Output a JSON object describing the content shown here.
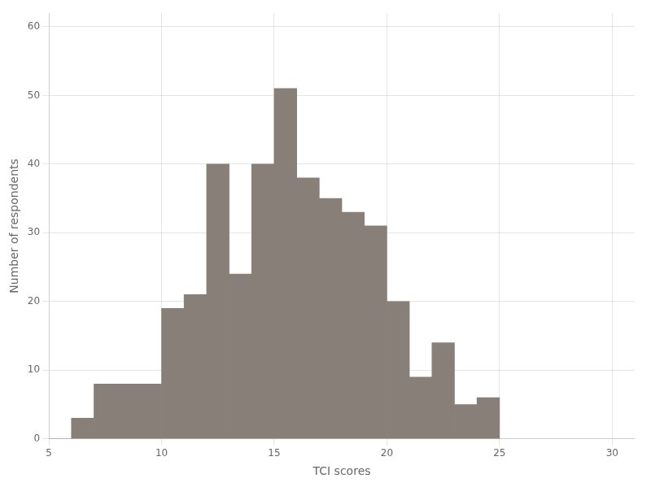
{
  "chart_data": {
    "type": "histogram",
    "bins": [
      5,
      6,
      7,
      8,
      9,
      10,
      11,
      12,
      13,
      14,
      15,
      16,
      17,
      18,
      19,
      20,
      21,
      22,
      23,
      24,
      25
    ],
    "values": [
      0,
      3,
      8,
      8,
      8,
      19,
      21,
      40,
      24,
      40,
      51,
      38,
      35,
      33,
      31,
      20,
      9,
      14,
      5,
      6
    ],
    "color": "#888078",
    "xlabel": "TCI scores",
    "ylabel": "Number of respondents",
    "xlim": [
      5,
      31
    ],
    "xticks": [
      5,
      10,
      15,
      20,
      25,
      30
    ],
    "ylim": [
      0,
      62
    ],
    "yticks": [
      0,
      10,
      20,
      30,
      40,
      50,
      60
    ],
    "grid": true
  }
}
